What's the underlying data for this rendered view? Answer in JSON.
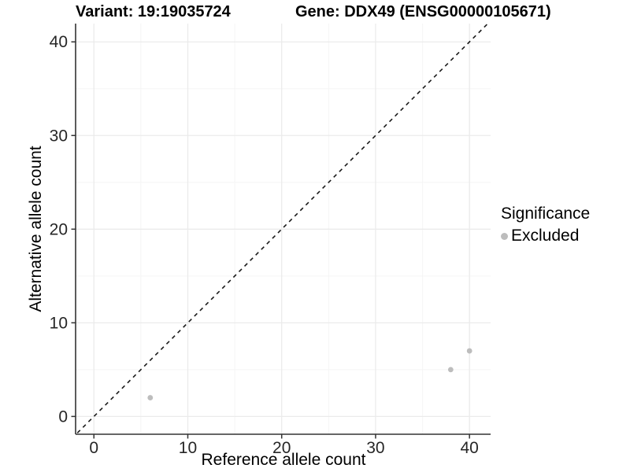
{
  "header": {
    "variant_title": "Variant: 19:19035724",
    "gene_title": "Gene: DDX49 (ENSG00000105671)"
  },
  "chart_data": {
    "type": "scatter",
    "xlabel": "Reference allele count",
    "ylabel": "Alternative allele count",
    "x_ticks": [
      0,
      10,
      20,
      30,
      40
    ],
    "y_ticks": [
      0,
      10,
      20,
      30,
      40
    ],
    "x_minor_ticks": [
      5,
      15,
      25,
      35
    ],
    "y_minor_ticks": [
      5,
      15,
      25,
      35
    ],
    "x_range": [
      -1.95,
      42.25
    ],
    "y_range": [
      -1.9,
      41.95
    ],
    "grid": true,
    "identity_line": {
      "equation": "y = x",
      "style": "dashed",
      "color": "#1a1a1a"
    },
    "series": [
      {
        "name": "Excluded",
        "color": "#bdbdbd",
        "points": [
          {
            "x": 6,
            "y": 2
          },
          {
            "x": 38,
            "y": 5
          },
          {
            "x": 40,
            "y": 7
          }
        ]
      }
    ],
    "legend": {
      "title": "Significance",
      "position": "right",
      "items": [
        {
          "label": "Excluded",
          "color": "#bdbdbd"
        }
      ]
    }
  },
  "colors": {
    "background": "#ffffff",
    "grid_major": "#ebebeb",
    "grid_minor": "#f5f5f5",
    "axis_line": "#333333",
    "tick_text": "#262626",
    "point": "#bdbdbd"
  }
}
